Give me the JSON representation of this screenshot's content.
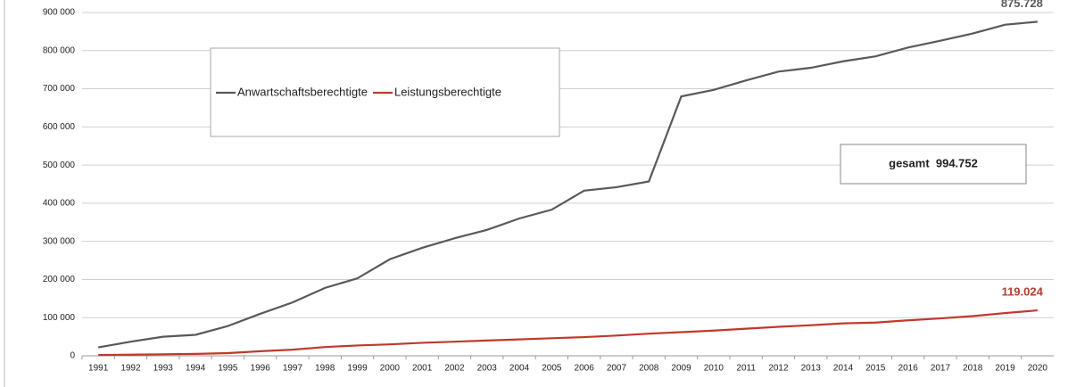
{
  "chart_data": {
    "type": "line",
    "categories": [
      "1991",
      "1992",
      "1993",
      "1994",
      "1995",
      "1996",
      "1997",
      "1998",
      "1999",
      "2000",
      "2001",
      "2002",
      "2003",
      "2004",
      "2005",
      "2006",
      "2007",
      "2008",
      "2009",
      "2010",
      "2011",
      "2012",
      "2013",
      "2014",
      "2015",
      "2016",
      "2017",
      "2018",
      "2019",
      "2020"
    ],
    "series": [
      {
        "name": "Anwartschaftsberechtigte",
        "color": "#595959",
        "values": [
          22000,
          37000,
          50000,
          55000,
          78000,
          110000,
          140000,
          178000,
          203000,
          253000,
          283000,
          308000,
          330000,
          360000,
          383000,
          433000,
          442000,
          457000,
          680000,
          697000,
          722000,
          745000,
          755000,
          772000,
          785000,
          808000,
          826000,
          845000,
          868000,
          875728
        ],
        "value_labels": [
          null,
          null,
          null,
          null,
          null,
          null,
          null,
          null,
          null,
          null,
          null,
          null,
          null,
          null,
          null,
          null,
          null,
          null,
          null,
          null,
          null,
          null,
          null,
          null,
          null,
          null,
          null,
          null,
          null,
          "875.728"
        ]
      },
      {
        "name": "Leistungsberechtigte",
        "color": "#c0392b",
        "values": [
          2000,
          3000,
          4000,
          5000,
          7000,
          12000,
          16000,
          23000,
          27000,
          30000,
          34000,
          37000,
          40000,
          43000,
          46000,
          49000,
          53000,
          58000,
          62000,
          66000,
          71000,
          76000,
          80000,
          85000,
          87000,
          93000,
          98000,
          104000,
          112000,
          119024
        ],
        "value_labels": [
          null,
          null,
          null,
          null,
          null,
          null,
          null,
          null,
          null,
          null,
          null,
          null,
          null,
          null,
          null,
          null,
          null,
          null,
          null,
          null,
          null,
          null,
          null,
          null,
          null,
          null,
          null,
          null,
          null,
          "119.024"
        ]
      }
    ],
    "annotation": "gesamt  994.752",
    "ylim": [
      0,
      900000
    ],
    "yticks": [
      0,
      {
        "value": 100000,
        "label": "100 000"
      },
      {
        "value": 200000,
        "label": "200 000"
      },
      {
        "value": 300000,
        "label": "300 000"
      },
      {
        "value": 400000,
        "label": "400 000"
      },
      {
        "value": 500000,
        "label": "500 000"
      },
      {
        "value": 600000,
        "label": "600 000"
      },
      {
        "value": 700000,
        "label": "700 000"
      },
      {
        "value": 800000,
        "label": "800 000"
      },
      {
        "value": 900000,
        "label": "900 000"
      }
    ],
    "grid": true
  }
}
